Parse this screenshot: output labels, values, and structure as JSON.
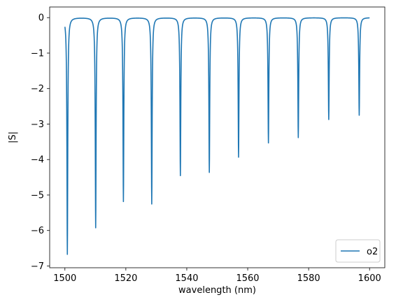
{
  "chart_data": {
    "type": "line",
    "xlabel": "wavelength (nm)",
    "ylabel": "|S|",
    "xlim": [
      1495,
      1605
    ],
    "ylim": [
      -7.05,
      0.3
    ],
    "x_ticks": [
      1500,
      1520,
      1540,
      1560,
      1580,
      1600
    ],
    "y_ticks": [
      0,
      -1,
      -2,
      -3,
      -4,
      -5,
      -6,
      -7
    ],
    "grid": false,
    "legend_position": "bottom-right",
    "line_color": "#1f77b4",
    "x_range": [
      1500,
      1600
    ],
    "baseline": 0,
    "series": [
      {
        "name": "o2",
        "resonances": [
          {
            "x": 1500.8,
            "y": -6.67
          },
          {
            "x": 1510.1,
            "y": -5.92
          },
          {
            "x": 1519.2,
            "y": -5.18
          },
          {
            "x": 1528.5,
            "y": -5.25
          },
          {
            "x": 1537.9,
            "y": -4.45
          },
          {
            "x": 1547.4,
            "y": -4.36
          },
          {
            "x": 1557.0,
            "y": -3.93
          },
          {
            "x": 1566.8,
            "y": -3.53
          },
          {
            "x": 1576.6,
            "y": -3.38
          },
          {
            "x": 1586.6,
            "y": -2.87
          },
          {
            "x": 1596.6,
            "y": -2.75
          }
        ]
      }
    ]
  }
}
